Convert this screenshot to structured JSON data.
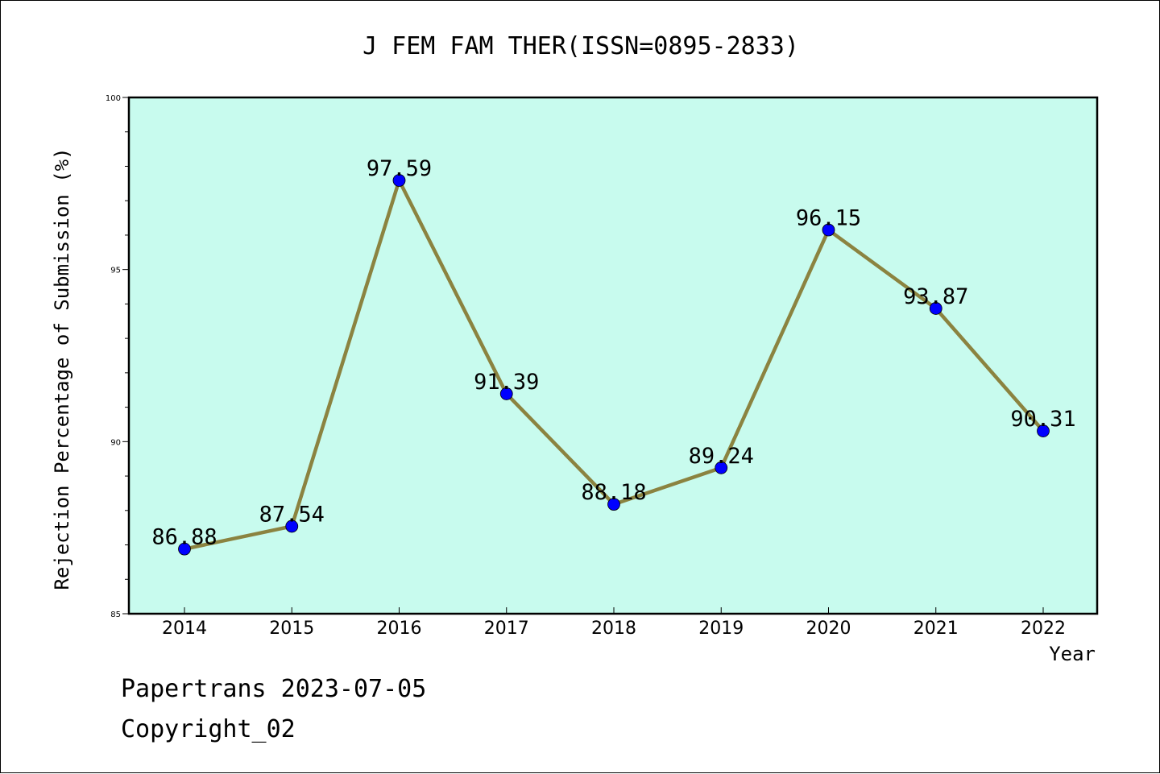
{
  "chart_data": {
    "type": "line",
    "title": "J FEM FAM THER(ISSN=0895-2833)",
    "xlabel": "Year",
    "ylabel": "Rejection Percentage of Submission (%)",
    "categories": [
      "2014",
      "2015",
      "2016",
      "2017",
      "2018",
      "2019",
      "2020",
      "2021",
      "2022"
    ],
    "series": [
      {
        "values": [
          86.88,
          87.54,
          97.59,
          91.39,
          88.18,
          89.24,
          96.15,
          93.87,
          90.31
        ],
        "labels": [
          "86.88",
          "87.54",
          "97.59",
          "91.39",
          "88.18",
          "89.24",
          "96.15",
          "93.87",
          "90.31"
        ]
      }
    ],
    "ylim": [
      85,
      100
    ],
    "yticks": [
      "85",
      "90",
      "95",
      "100"
    ],
    "grid": false,
    "colors": {
      "plot_background": "#c8fbee",
      "line": "#8b8340",
      "marker": "#0000ff"
    }
  },
  "footer": {
    "line1": "Papertrans 2023-07-05",
    "line2": "Copyright_02"
  }
}
